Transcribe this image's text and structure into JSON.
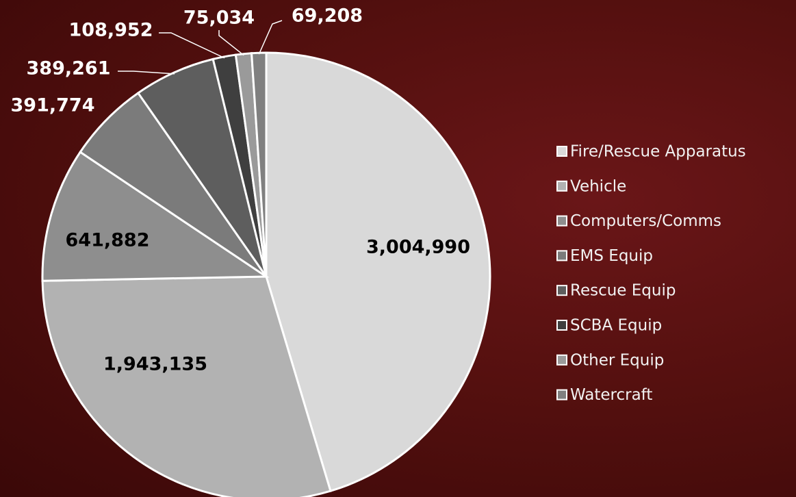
{
  "chart_data": {
    "type": "pie",
    "categories": [
      "Fire/Rescue Apparatus",
      "Vehicle",
      "Computers/Comms",
      "EMS Equip",
      "Rescue Equip",
      "SCBA Equip",
      "Other Equip",
      "Watercraft"
    ],
    "values": [
      3004990,
      1943135,
      641882,
      391774,
      389261,
      108952,
      75034,
      69208
    ],
    "value_labels": [
      "3,004,990",
      "1,943,135",
      "641,882",
      "391,774",
      "389,261",
      "108,952",
      "75,034",
      "69,208"
    ],
    "colors": [
      "#d9d9d9",
      "#b2b2b2",
      "#8e8e8e",
      "#7b7b7b",
      "#5e5e5e",
      "#3f3f3f",
      "#9a9a9a",
      "#808080"
    ],
    "legend": "right"
  }
}
